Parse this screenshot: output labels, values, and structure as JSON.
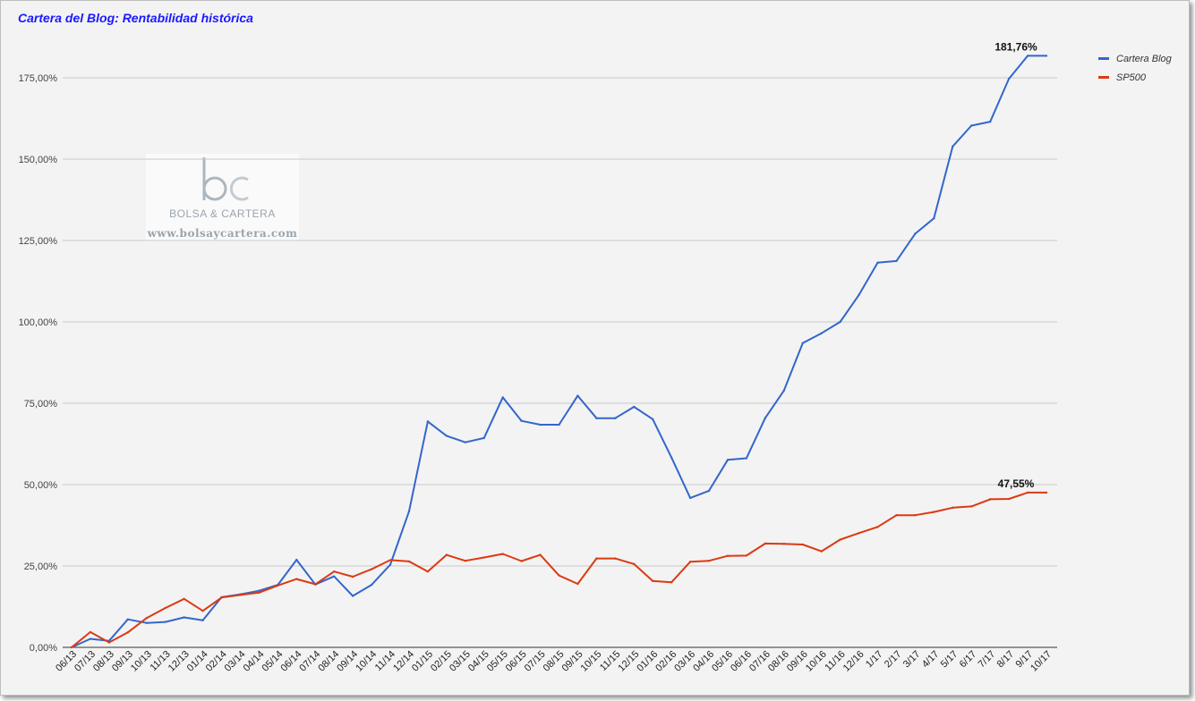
{
  "chart_data": {
    "type": "line",
    "title": "Cartera del Blog: Rentabilidad histórica",
    "xlabel": "",
    "ylabel": "",
    "ylim": [
      0,
      175
    ],
    "yticks": [
      0,
      25,
      50,
      75,
      100,
      125,
      150,
      175
    ],
    "ytick_labels": [
      "0,00%",
      "25,00%",
      "50,00%",
      "75,00%",
      "100,00%",
      "125,00%",
      "150,00%",
      "175,00%"
    ],
    "grid": true,
    "legend_position": "top-right",
    "categories": [
      "06/13",
      "07/13",
      "08/13",
      "09/13",
      "10/13",
      "11/13",
      "12/13",
      "01/14",
      "02/14",
      "03/14",
      "04/14",
      "05/14",
      "06/14",
      "07/14",
      "08/14",
      "09/14",
      "10/14",
      "11/14",
      "12/14",
      "01/15",
      "02/15",
      "03/15",
      "04/15",
      "05/15",
      "06/15",
      "07/15",
      "08/15",
      "09/15",
      "10/15",
      "11/15",
      "12/15",
      "01/16",
      "02/16",
      "03/16",
      "04/16",
      "05/16",
      "06/16",
      "07/16",
      "08/16",
      "09/16",
      "10/16",
      "11/16",
      "12/16",
      "1/17",
      "2/17",
      "3/17",
      "4/17",
      "5/17",
      "6/17",
      "7/17",
      "8/17",
      "9/17",
      "10/17"
    ],
    "series": [
      {
        "name": "Cartera Blog",
        "color": "#3366cc",
        "values": [
          0,
          2.6,
          2,
          8.6,
          7.5,
          7.8,
          9.2,
          8.3,
          15.4,
          16.3,
          17.4,
          19.2,
          26.9,
          19.3,
          21.8,
          15.8,
          19.2,
          25.4,
          41.8,
          69.4,
          65,
          63,
          64.3,
          76.8,
          69.6,
          68.4,
          68.4,
          77.3,
          70.4,
          70.4,
          73.9,
          70.1,
          58.3,
          45.9,
          48.1,
          57.6,
          58.1,
          70.5,
          78.9,
          93.5,
          96.5,
          100,
          108.3,
          118.2,
          118.7,
          127.1,
          131.8,
          153.9,
          160.3,
          161.5,
          174.7,
          181.76,
          181.76
        ]
      },
      {
        "name": "SP500",
        "color": "#dc3912",
        "values": [
          0,
          4.7,
          1.5,
          4.6,
          9,
          12.1,
          14.9,
          11.2,
          15.3,
          16.1,
          16.8,
          19,
          21,
          19.4,
          23.3,
          21.7,
          24,
          26.8,
          26.4,
          23.3,
          28.4,
          26.6,
          27.6,
          28.7,
          26.5,
          28.4,
          22.1,
          19.5,
          27.3,
          27.3,
          25.6,
          20.4,
          20,
          26.3,
          26.6,
          28.1,
          28.2,
          31.9,
          31.8,
          31.6,
          29.5,
          33.1,
          35.1,
          37,
          40.6,
          40.6,
          41.6,
          42.9,
          43.3,
          45.5,
          45.6,
          47.55,
          47.55
        ]
      }
    ],
    "annotations": [
      {
        "series": 0,
        "text": "181,76%"
      },
      {
        "series": 1,
        "text": "47,55%"
      }
    ]
  },
  "watermark": {
    "logo": "bc",
    "brand": "BOLSA & CARTERA",
    "url": "www.bolsaycartera.com"
  }
}
